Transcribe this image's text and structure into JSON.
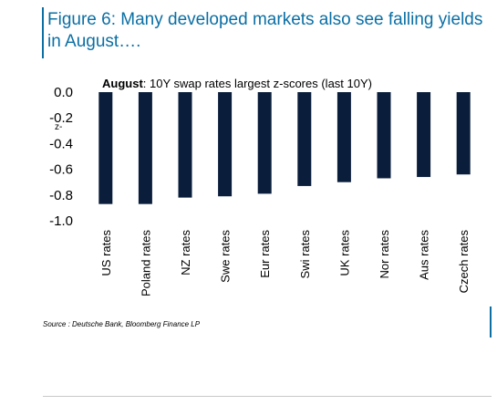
{
  "figure": {
    "title": "Figure 6: Many developed markets also see falling yields in August….",
    "source": "Source : Deutsche Bank, Bloomberg Finance LP"
  },
  "colors": {
    "accent": "#0b6fa4",
    "bar": "#0a1e3c"
  },
  "chart_data": {
    "type": "bar",
    "title_bold": "August",
    "title_rest": ": 10Y swap rates largest z-scores (last 10Y)",
    "ylabel": "z-",
    "categories": [
      "US rates",
      "Poland rates",
      "NZ rates",
      "Swe rates",
      "Eur rates",
      "Swi rates",
      "UK rates",
      "Nor rates",
      "Aus rates",
      "Czech rates"
    ],
    "values": [
      -0.87,
      -0.87,
      -0.82,
      -0.81,
      -0.79,
      -0.73,
      -0.7,
      -0.67,
      -0.66,
      -0.64
    ],
    "ylim": [
      -1.0,
      0.0
    ],
    "yticks": [
      "0.0",
      "-0.2",
      "-0.4",
      "-0.6",
      "-0.8",
      "-1.0"
    ],
    "grid": false,
    "legend": "none"
  }
}
